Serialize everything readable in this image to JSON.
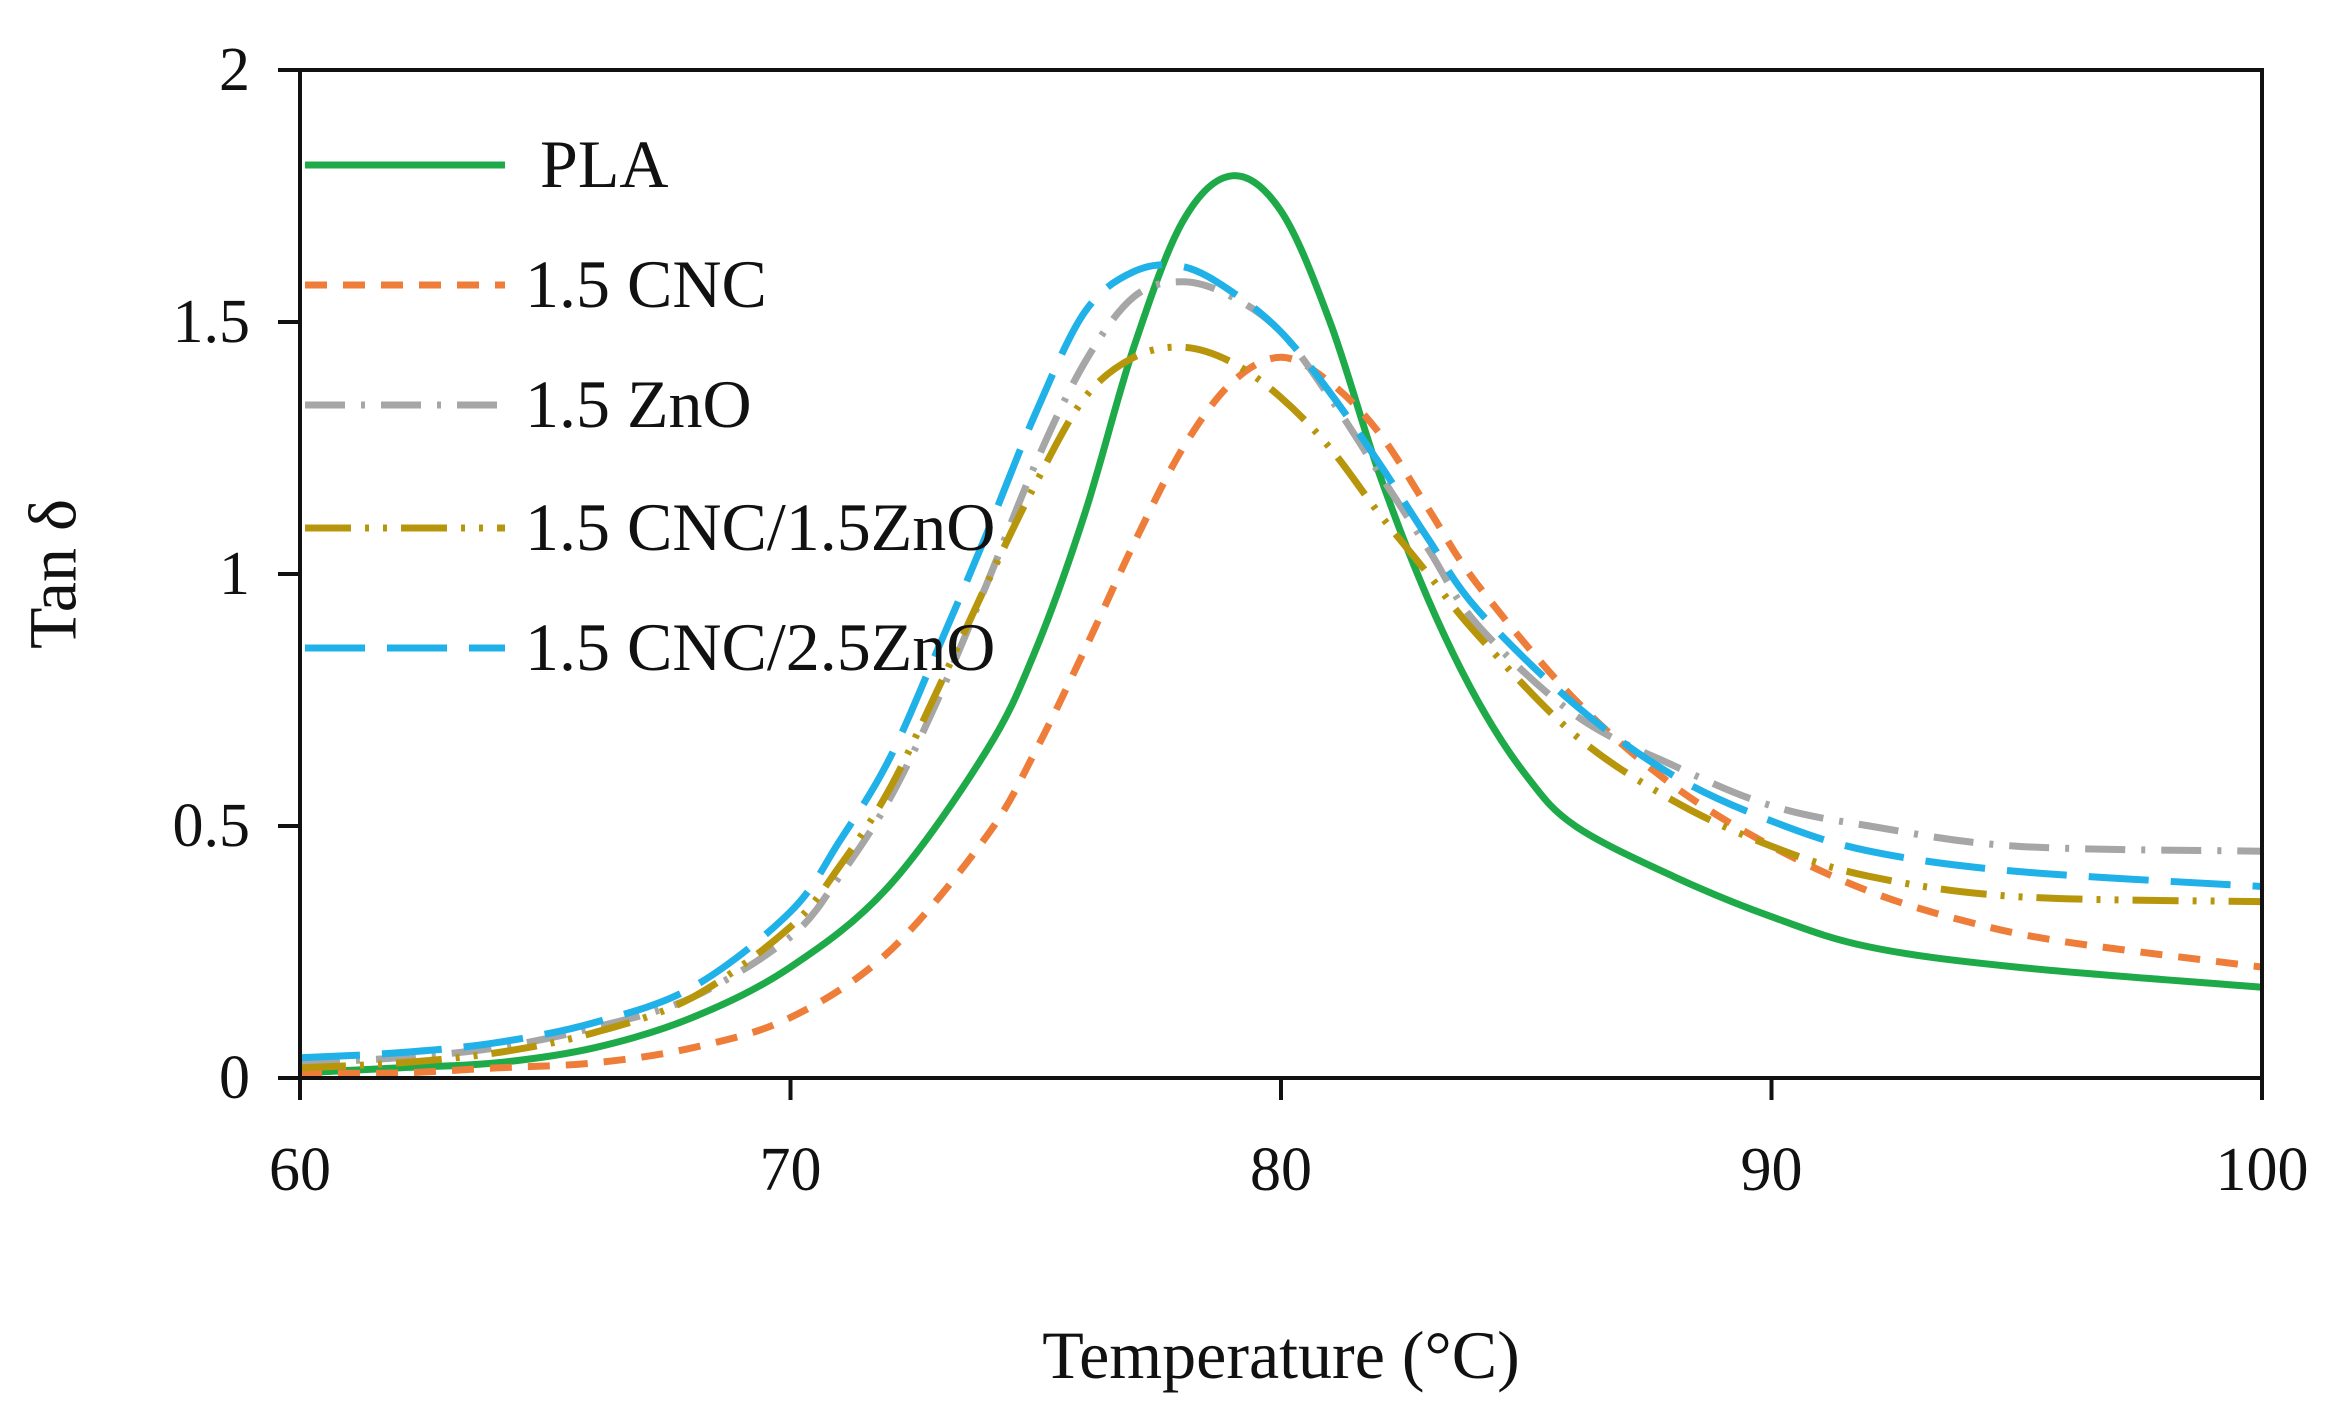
{
  "chart_data": {
    "type": "line",
    "title": "",
    "xlabel": "Temperature (°C)",
    "ylabel": "Tan δ",
    "xlim": [
      60,
      100
    ],
    "ylim": [
      0,
      2
    ],
    "xticks": [
      60,
      70,
      80,
      90,
      100
    ],
    "xtick_labels": [
      "60",
      "70",
      "80",
      "90",
      "100"
    ],
    "yticks": [
      0,
      0.5,
      1,
      1.5,
      2
    ],
    "ytick_labels": [
      "0",
      "0.5",
      "1",
      "1.5",
      "2"
    ],
    "grid": false,
    "legend_position": "top-left",
    "series": [
      {
        "name": "PLA",
        "color": "#1faa4a",
        "style": "solid",
        "x": [
          60,
          62,
          64,
          66,
          68,
          70,
          72,
          74,
          75,
          76,
          77,
          78,
          79,
          80,
          81,
          82,
          83,
          84,
          85,
          86,
          88,
          90,
          92,
          95,
          100
        ],
        "y": [
          0.01,
          0.02,
          0.03,
          0.06,
          0.12,
          0.22,
          0.38,
          0.65,
          0.85,
          1.12,
          1.45,
          1.7,
          1.79,
          1.72,
          1.5,
          1.2,
          0.95,
          0.75,
          0.6,
          0.5,
          0.4,
          0.32,
          0.26,
          0.22,
          0.18
        ]
      },
      {
        "name": "1.5 CNC",
        "color": "#ee7d3a",
        "style": "dash",
        "x": [
          60,
          62,
          64,
          66,
          68,
          70,
          72,
          74,
          75,
          76,
          77,
          78,
          79,
          80,
          81,
          82,
          83,
          84,
          86,
          88,
          90,
          92,
          94,
          96,
          100
        ],
        "y": [
          0.01,
          0.01,
          0.02,
          0.03,
          0.06,
          0.12,
          0.25,
          0.48,
          0.65,
          0.85,
          1.06,
          1.25,
          1.38,
          1.43,
          1.38,
          1.28,
          1.13,
          0.98,
          0.75,
          0.58,
          0.46,
          0.37,
          0.31,
          0.27,
          0.22
        ]
      },
      {
        "name": "1.5 ZnO",
        "color": "#a6a6a6",
        "style": "dashdot",
        "x": [
          60,
          62,
          64,
          66,
          68,
          70,
          71,
          72,
          73,
          74,
          75,
          76,
          77,
          78,
          79,
          80,
          81,
          82,
          83,
          84,
          86,
          88,
          90,
          92,
          95,
          100
        ],
        "y": [
          0.03,
          0.04,
          0.06,
          0.1,
          0.16,
          0.28,
          0.4,
          0.55,
          0.75,
          0.98,
          1.22,
          1.42,
          1.55,
          1.58,
          1.55,
          1.48,
          1.35,
          1.2,
          1.05,
          0.9,
          0.72,
          0.62,
          0.54,
          0.5,
          0.46,
          0.45
        ]
      },
      {
        "name": "1.5 CNC/1.5ZnO",
        "color": "#b8960c",
        "style": "longdashdotdot",
        "x": [
          60,
          62,
          64,
          66,
          68,
          70,
          71,
          72,
          73,
          74,
          75,
          76,
          77,
          78,
          79,
          80,
          81,
          82,
          83,
          84,
          86,
          88,
          90,
          92,
          95,
          100
        ],
        "y": [
          0.02,
          0.03,
          0.05,
          0.09,
          0.16,
          0.3,
          0.42,
          0.57,
          0.77,
          0.98,
          1.18,
          1.35,
          1.43,
          1.45,
          1.42,
          1.35,
          1.25,
          1.12,
          1.0,
          0.88,
          0.68,
          0.55,
          0.46,
          0.4,
          0.36,
          0.35
        ]
      },
      {
        "name": "1.5 CNC/2.5ZnO",
        "color": "#1fb1e8",
        "style": "longdash",
        "x": [
          60,
          62,
          64,
          66,
          68,
          70,
          71,
          72,
          73,
          74,
          75,
          76,
          77,
          78,
          79,
          80,
          81,
          82,
          83,
          84,
          86,
          88,
          90,
          92,
          95,
          100
        ],
        "y": [
          0.04,
          0.05,
          0.07,
          0.11,
          0.18,
          0.33,
          0.47,
          0.63,
          0.85,
          1.08,
          1.32,
          1.52,
          1.6,
          1.61,
          1.56,
          1.48,
          1.36,
          1.22,
          1.07,
          0.93,
          0.74,
          0.6,
          0.51,
          0.45,
          0.41,
          0.38
        ]
      }
    ]
  }
}
